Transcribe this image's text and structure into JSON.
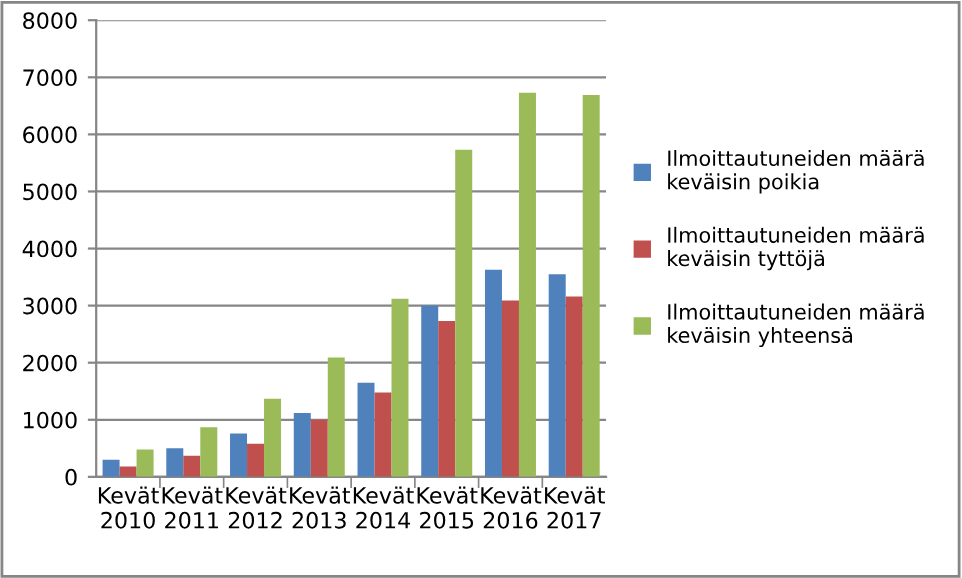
{
  "chart_data": {
    "type": "bar",
    "categories": [
      "Kevät 2010",
      "Kevät 2011",
      "Kevät 2012",
      "Kevät 2013",
      "Kevät 2014",
      "Kevät 2015",
      "Kevät 2016",
      "Kevät 2017"
    ],
    "series": [
      {
        "name": "Ilmoittautuneiden määrä keväisin poikia",
        "color": "#4f81bd",
        "values": [
          300,
          500,
          760,
          1120,
          1650,
          3000,
          3630,
          3550
        ]
      },
      {
        "name": "Ilmoittautuneiden määrä keväisin tyttöjä",
        "color": "#c0504d",
        "values": [
          180,
          370,
          580,
          1000,
          1480,
          2730,
          3090,
          3160
        ]
      },
      {
        "name": "Ilmoittautuneiden määrä keväisin yhteensä",
        "color": "#9bbb59",
        "values": [
          480,
          870,
          1370,
          2090,
          3120,
          5730,
          6730,
          6690
        ]
      }
    ],
    "ylim": [
      0,
      8000
    ],
    "yticks": [
      0,
      1000,
      2000,
      3000,
      4000,
      5000,
      6000,
      7000,
      8000
    ],
    "grid": "y",
    "legend": "right"
  }
}
